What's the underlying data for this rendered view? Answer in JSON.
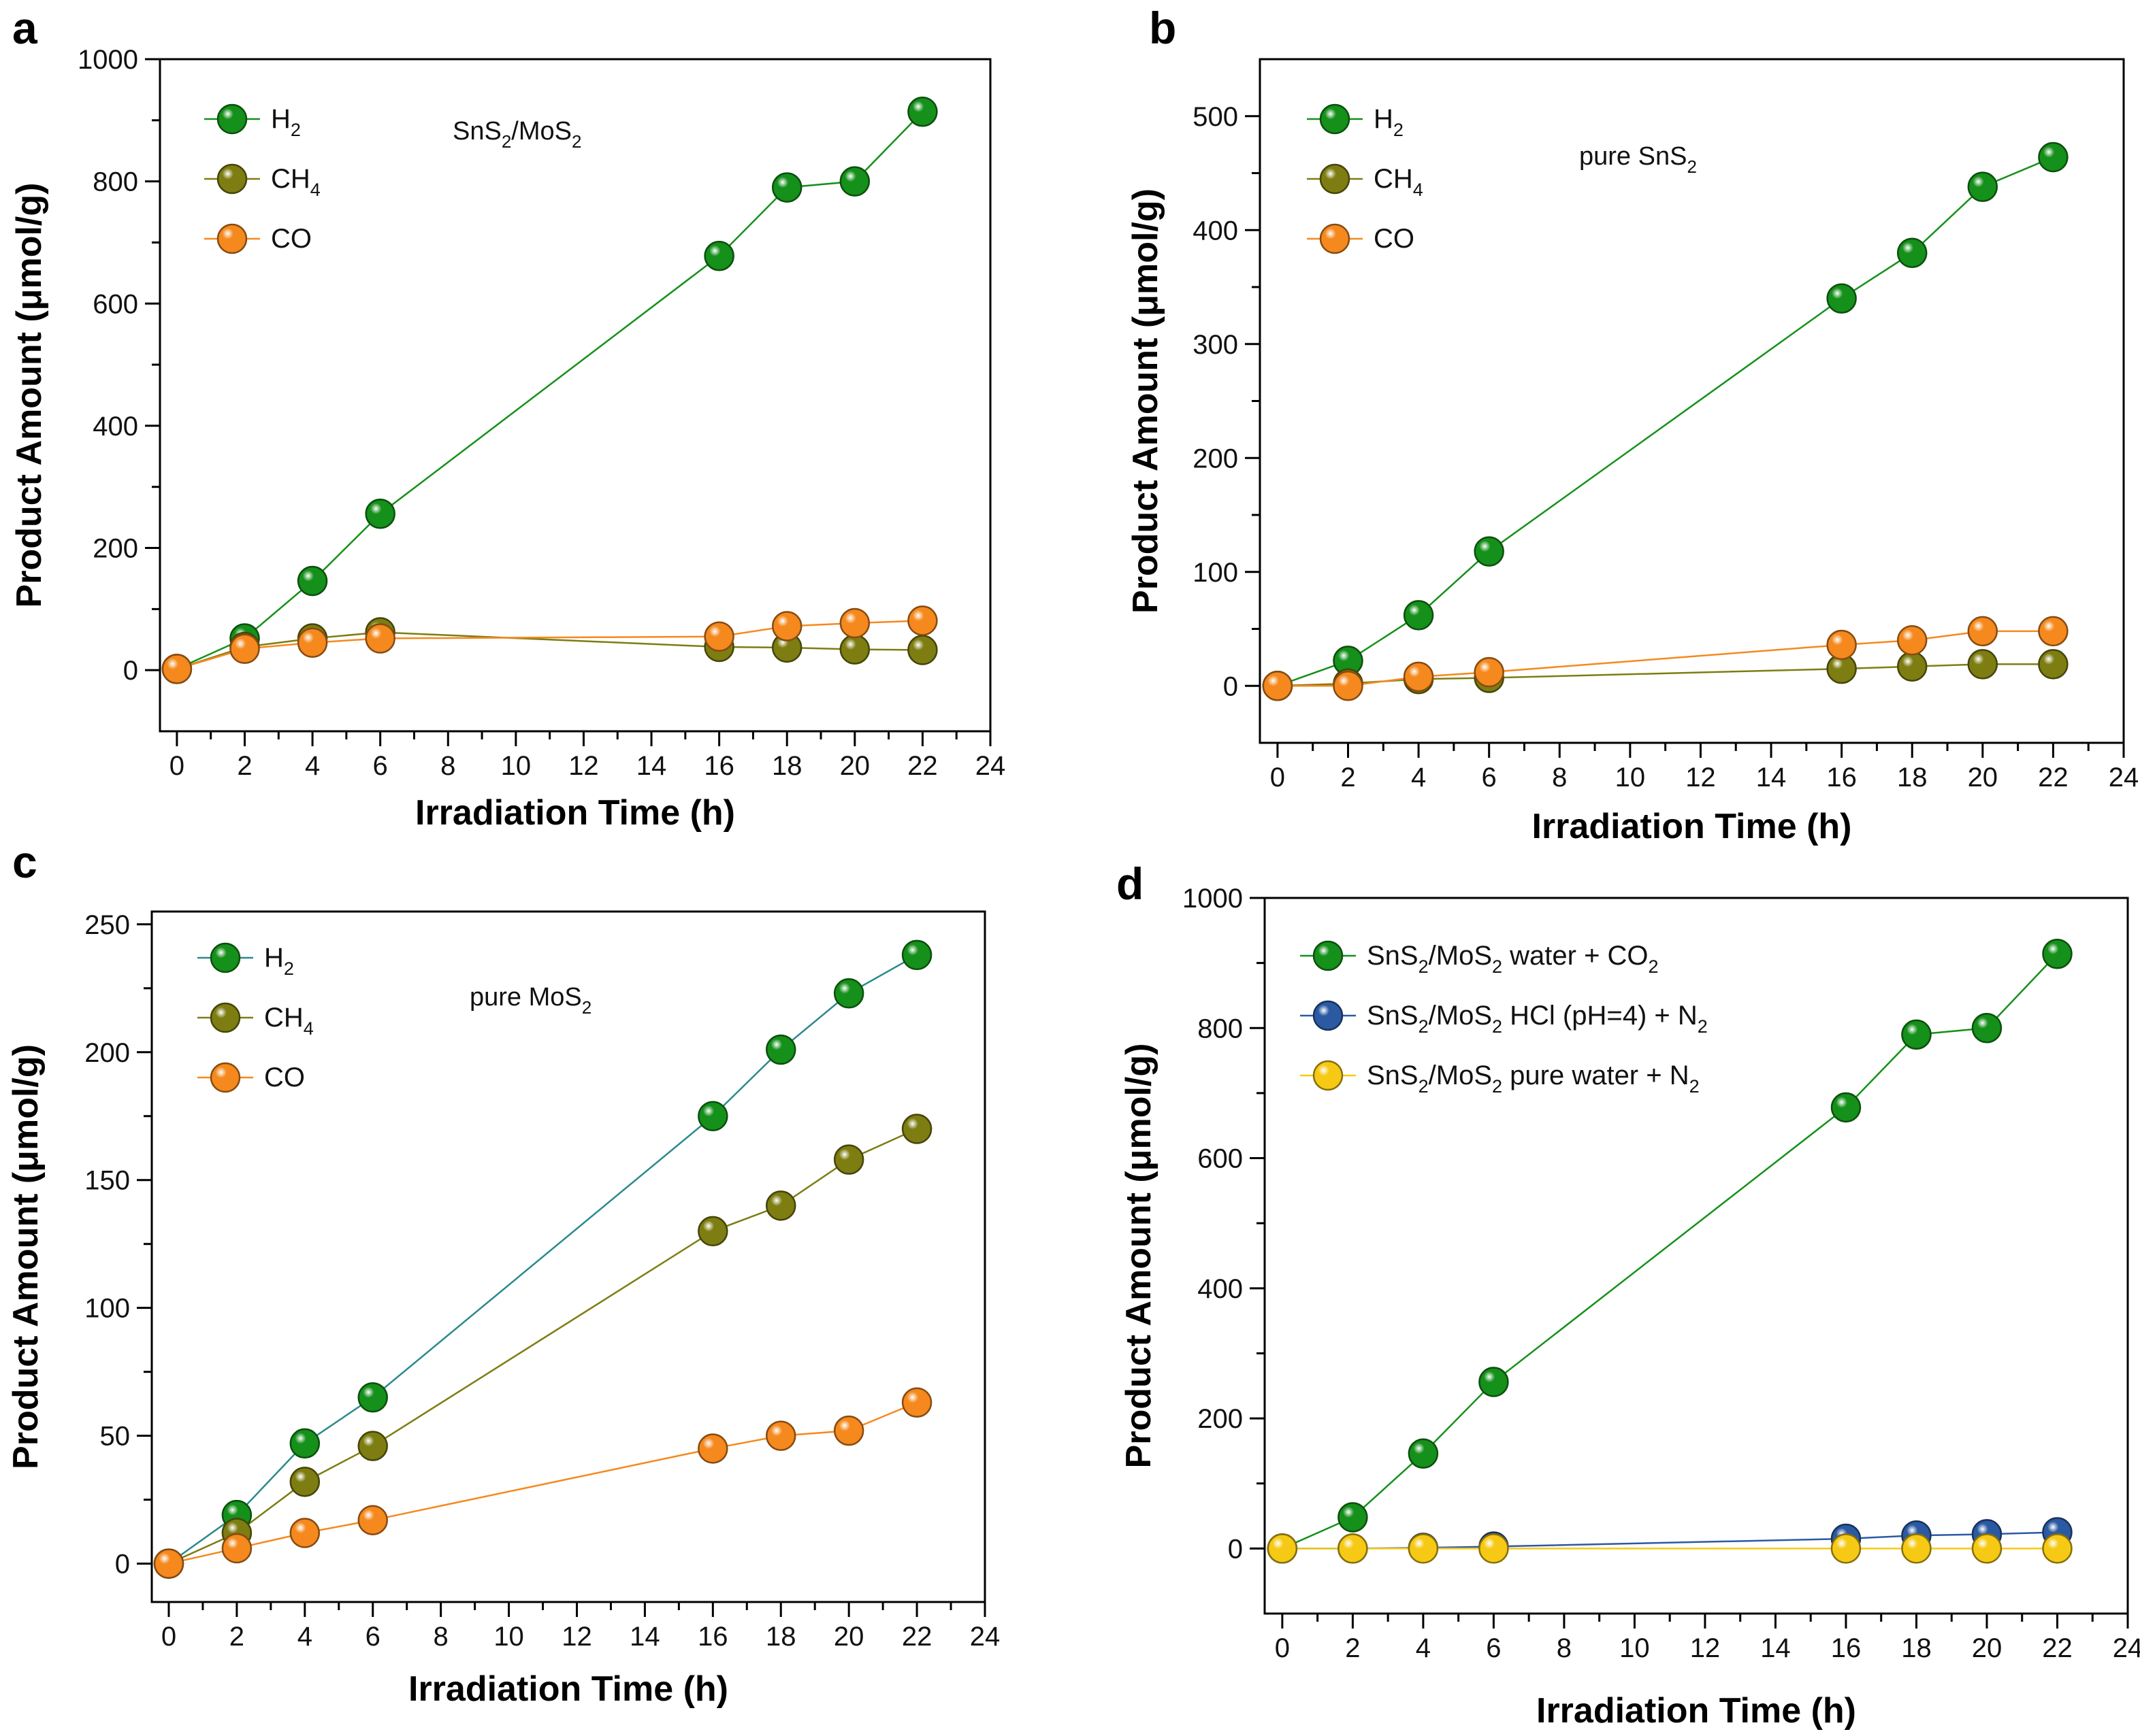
{
  "figure": {
    "panel_labels": [
      "a",
      "b",
      "c",
      "d"
    ]
  },
  "chart_data": [
    {
      "panel": "a",
      "type": "line",
      "title": "",
      "annotation": {
        "parts": [
          [
            "SnS",
            ""
          ],
          [
            "2",
            "sub"
          ],
          [
            "/MoS",
            ""
          ],
          [
            "2",
            "sub"
          ]
        ]
      },
      "xlabel": "Irradiation Time (h)",
      "ylabel": "Product Amount (μmol/g)",
      "xlim": [
        -0.5,
        24
      ],
      "ylim": [
        -100,
        1000
      ],
      "xticks": [
        0,
        2,
        4,
        6,
        8,
        10,
        12,
        14,
        16,
        18,
        20,
        22,
        24
      ],
      "yticks": [
        0,
        200,
        400,
        600,
        800,
        1000
      ],
      "legend_position": "top-left",
      "x": [
        0,
        2,
        4,
        6,
        16,
        18,
        20,
        22
      ],
      "series": [
        {
          "name": [
            [
              "H",
              ""
            ],
            [
              "2",
              "sub"
            ]
          ],
          "color": "#15901a",
          "values": [
            2,
            52,
            146,
            256,
            678,
            790,
            800,
            914
          ]
        },
        {
          "name": [
            [
              "CH",
              ""
            ],
            [
              "4",
              "sub"
            ]
          ],
          "color": "#7d7d12",
          "values": [
            2,
            38,
            52,
            62,
            38,
            37,
            34,
            33
          ]
        },
        {
          "name": [
            [
              "CO",
              ""
            ]
          ],
          "color": "#f5891e",
          "values": [
            2,
            35,
            45,
            52,
            55,
            72,
            77,
            81
          ]
        }
      ]
    },
    {
      "panel": "b",
      "type": "line",
      "title": "",
      "annotation": {
        "parts": [
          [
            "pure SnS",
            ""
          ],
          [
            "2",
            "sub"
          ]
        ]
      },
      "xlabel": "Irradiation Time (h)",
      "ylabel": "Product Amount (μmol/g)",
      "xlim": [
        -0.5,
        24
      ],
      "ylim": [
        -50,
        550
      ],
      "xticks": [
        0,
        2,
        4,
        6,
        8,
        10,
        12,
        14,
        16,
        18,
        20,
        22,
        24
      ],
      "yticks": [
        0,
        100,
        200,
        300,
        400,
        500
      ],
      "legend_position": "top-left",
      "x": [
        0,
        2,
        4,
        6,
        16,
        18,
        20,
        22
      ],
      "series": [
        {
          "name": [
            [
              "H",
              ""
            ],
            [
              "2",
              "sub"
            ]
          ],
          "color": "#15901a",
          "values": [
            0,
            22,
            62,
            118,
            340,
            380,
            438,
            464
          ]
        },
        {
          "name": [
            [
              "CH",
              ""
            ],
            [
              "4",
              "sub"
            ]
          ],
          "color": "#7d7d12",
          "values": [
            0,
            2,
            6,
            7,
            15,
            17,
            19,
            19
          ]
        },
        {
          "name": [
            [
              "CO",
              ""
            ]
          ],
          "color": "#f5891e",
          "values": [
            0,
            0,
            8,
            12,
            36,
            40,
            48,
            48
          ]
        }
      ]
    },
    {
      "panel": "c",
      "type": "line",
      "title": "",
      "annotation": {
        "parts": [
          [
            "pure MoS",
            ""
          ],
          [
            "2",
            "sub"
          ]
        ]
      },
      "xlabel": "Irradiation Time (h)",
      "ylabel": "Product Amount (μmol/g)",
      "xlim": [
        -0.5,
        24
      ],
      "ylim": [
        -15,
        255
      ],
      "xticks": [
        0,
        2,
        4,
        6,
        8,
        10,
        12,
        14,
        16,
        18,
        20,
        22,
        24
      ],
      "yticks": [
        0,
        50,
        100,
        150,
        200,
        250
      ],
      "legend_position": "top-left",
      "x": [
        0,
        2,
        4,
        6,
        16,
        18,
        20,
        22
      ],
      "series": [
        {
          "name": [
            [
              "H",
              ""
            ],
            [
              "2",
              "sub"
            ]
          ],
          "color": "#15901a",
          "line_color": "#2a8a8c",
          "values": [
            0,
            19,
            47,
            65,
            175,
            201,
            223,
            238
          ]
        },
        {
          "name": [
            [
              "CH",
              ""
            ],
            [
              "4",
              "sub"
            ]
          ],
          "color": "#7d7d12",
          "values": [
            0,
            12,
            32,
            46,
            130,
            140,
            158,
            170
          ]
        },
        {
          "name": [
            [
              "CO",
              ""
            ]
          ],
          "color": "#f5891e",
          "values": [
            0,
            6,
            12,
            17,
            45,
            50,
            52,
            63
          ]
        }
      ]
    },
    {
      "panel": "d",
      "type": "line",
      "title": "",
      "annotation": null,
      "xlabel": "Irradiation Time (h)",
      "ylabel": "Product Amount (μmol/g)",
      "xlim": [
        -0.5,
        24
      ],
      "ylim": [
        -100,
        1000
      ],
      "xticks": [
        0,
        2,
        4,
        6,
        8,
        10,
        12,
        14,
        16,
        18,
        20,
        22,
        24
      ],
      "yticks": [
        0,
        200,
        400,
        600,
        800,
        1000
      ],
      "legend_position": "top-left",
      "x": [
        0,
        2,
        4,
        6,
        16,
        18,
        20,
        22
      ],
      "series": [
        {
          "name": [
            [
              "SnS",
              ""
            ],
            [
              "2",
              "sub"
            ],
            [
              "/MoS",
              ""
            ],
            [
              "2",
              "sub"
            ],
            [
              " water + CO",
              ""
            ],
            [
              "2",
              "sub"
            ]
          ],
          "color": "#15901a",
          "values": [
            0,
            48,
            146,
            256,
            678,
            790,
            800,
            914
          ]
        },
        {
          "name": [
            [
              "SnS",
              ""
            ],
            [
              "2",
              "sub"
            ],
            [
              "/MoS",
              ""
            ],
            [
              "2",
              "sub"
            ],
            [
              "  HCl (pH=4) + N",
              ""
            ],
            [
              "2",
              "sub"
            ]
          ],
          "color": "#2b5aa3",
          "values": [
            0,
            0,
            1,
            3,
            15,
            20,
            22,
            25
          ]
        },
        {
          "name": [
            [
              "SnS",
              ""
            ],
            [
              "2",
              "sub"
            ],
            [
              "/MoS",
              ""
            ],
            [
              "2",
              "sub"
            ],
            [
              "  pure water + N",
              ""
            ],
            [
              "2",
              "sub"
            ]
          ],
          "color": "#f6c915",
          "values": [
            0,
            0,
            0,
            0,
            0,
            0,
            0,
            0
          ]
        }
      ]
    }
  ]
}
